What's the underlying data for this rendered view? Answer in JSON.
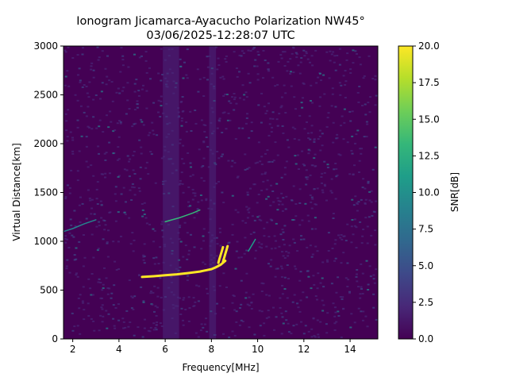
{
  "chart_data": {
    "type": "heatmap",
    "title": "Ionogram Jicamarca-Ayacucho Polarization NW45°",
    "subtitle": "03/06/2025-12:28:07 UTC",
    "xlabel": "Frequency[MHz]",
    "ylabel": "Virtual Distance[km]",
    "xlim": [
      1.6,
      15.2
    ],
    "ylim": [
      0,
      3000
    ],
    "x_ticks": [
      2,
      4,
      6,
      8,
      10,
      12,
      14
    ],
    "y_ticks": [
      0,
      500,
      1000,
      1500,
      2000,
      2500,
      3000
    ],
    "colorbar": {
      "label": "SNR[dB]",
      "min": 0.0,
      "max": 20.0,
      "ticks": [
        0.0,
        2.5,
        5.0,
        7.5,
        10.0,
        12.5,
        15.0,
        17.5,
        20.0
      ],
      "colormap": "viridis",
      "colors": [
        "#440154",
        "#482878",
        "#3e4989",
        "#31688e",
        "#26828e",
        "#1f9e89",
        "#35b779",
        "#6ece58",
        "#b5de2b",
        "#fde725"
      ]
    },
    "background_snr": 0.5,
    "vertical_noise_bands": [
      {
        "x_from": 5.9,
        "x_to": 6.6,
        "snr": 3.0
      },
      {
        "x_from": 7.9,
        "x_to": 8.2,
        "snr": 2.8
      }
    ],
    "series": [
      {
        "type": "trace",
        "snr": 20,
        "x": [
          5.0,
          5.5,
          6.0,
          6.5,
          7.0,
          7.5,
          7.8,
          8.0,
          8.2,
          8.4,
          8.6
        ],
        "y": [
          635,
          642,
          652,
          662,
          675,
          690,
          705,
          715,
          735,
          760,
          800
        ]
      },
      {
        "type": "trace",
        "snr": 20,
        "x": [
          8.3,
          8.35,
          8.4,
          8.45,
          8.5
        ],
        "y": [
          780,
          820,
          860,
          900,
          940
        ]
      },
      {
        "type": "trace",
        "snr": 20,
        "x": [
          8.5,
          8.55,
          8.6,
          8.65,
          8.7
        ],
        "y": [
          790,
          830,
          870,
          910,
          950
        ]
      },
      {
        "type": "trace",
        "snr": 14,
        "x": [
          6.0,
          6.3,
          6.6,
          6.9,
          7.2,
          7.5
        ],
        "y": [
          1200,
          1220,
          1240,
          1265,
          1290,
          1320
        ]
      },
      {
        "type": "trace",
        "snr": 11,
        "x": [
          9.6,
          9.7,
          9.8,
          9.9
        ],
        "y": [
          900,
          940,
          980,
          1020
        ]
      },
      {
        "type": "trace",
        "snr": 9,
        "x": [
          1.6,
          2.0,
          2.5,
          3.0
        ],
        "y": [
          1100,
          1130,
          1180,
          1220
        ]
      }
    ]
  }
}
